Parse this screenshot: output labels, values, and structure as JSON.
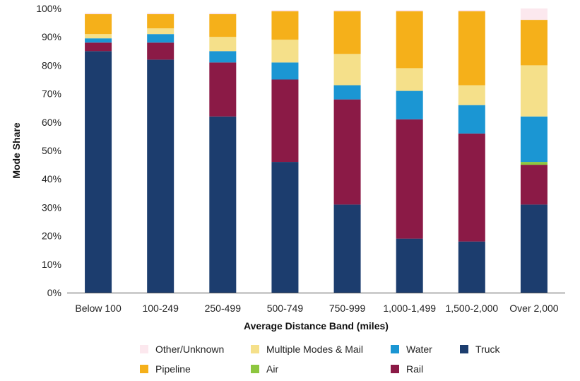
{
  "chart_data": {
    "type": "bar",
    "stacked": true,
    "title": "",
    "xlabel": "Average Distance Band (miles)",
    "ylabel": "Mode Share",
    "ylim": [
      0,
      100
    ],
    "ytick_values": [
      0,
      10,
      20,
      30,
      40,
      50,
      60,
      70,
      80,
      90,
      100
    ],
    "ytick_labels": [
      "0%",
      "10%",
      "20%",
      "30%",
      "40%",
      "50%",
      "60%",
      "70%",
      "80%",
      "90%",
      "100%"
    ],
    "grid": false,
    "legend_position": "bottom",
    "categories": [
      "Below 100",
      "100-249",
      "250-499",
      "500-749",
      "750-999",
      "1,000-1,499",
      "1,500-2,000",
      "Over 2,000"
    ],
    "series": [
      {
        "name": "Truck",
        "color": "#1c3d6e",
        "values": [
          85,
          82,
          62,
          46,
          31,
          19,
          18,
          31
        ]
      },
      {
        "name": "Rail",
        "color": "#8b1a46",
        "values": [
          3,
          6,
          19,
          29,
          37,
          42,
          38,
          14
        ]
      },
      {
        "name": "Air",
        "color": "#8dc63f",
        "values": [
          0,
          0,
          0,
          0,
          0,
          0,
          0,
          1
        ]
      },
      {
        "name": "Water",
        "color": "#1b96d3",
        "values": [
          1.5,
          3,
          4,
          6,
          5,
          10,
          10,
          16
        ]
      },
      {
        "name": "Multiple Modes & Mail",
        "color": "#f5e08a",
        "values": [
          1.5,
          2,
          5,
          8,
          11,
          8,
          7,
          18
        ]
      },
      {
        "name": "Pipeline",
        "color": "#f5b01a",
        "values": [
          7,
          5,
          8,
          10,
          15,
          20,
          26,
          16
        ]
      },
      {
        "name": "Other/Unknown",
        "color": "#fce8ee",
        "values": [
          0.5,
          0.5,
          0.5,
          0.5,
          0.5,
          0.5,
          0.5,
          4
        ]
      }
    ],
    "legend_rows": [
      [
        "Other/Unknown",
        "Multiple Modes & Mail",
        "Water",
        "Truck"
      ],
      [
        "Pipeline",
        "Air",
        "Rail"
      ]
    ]
  }
}
